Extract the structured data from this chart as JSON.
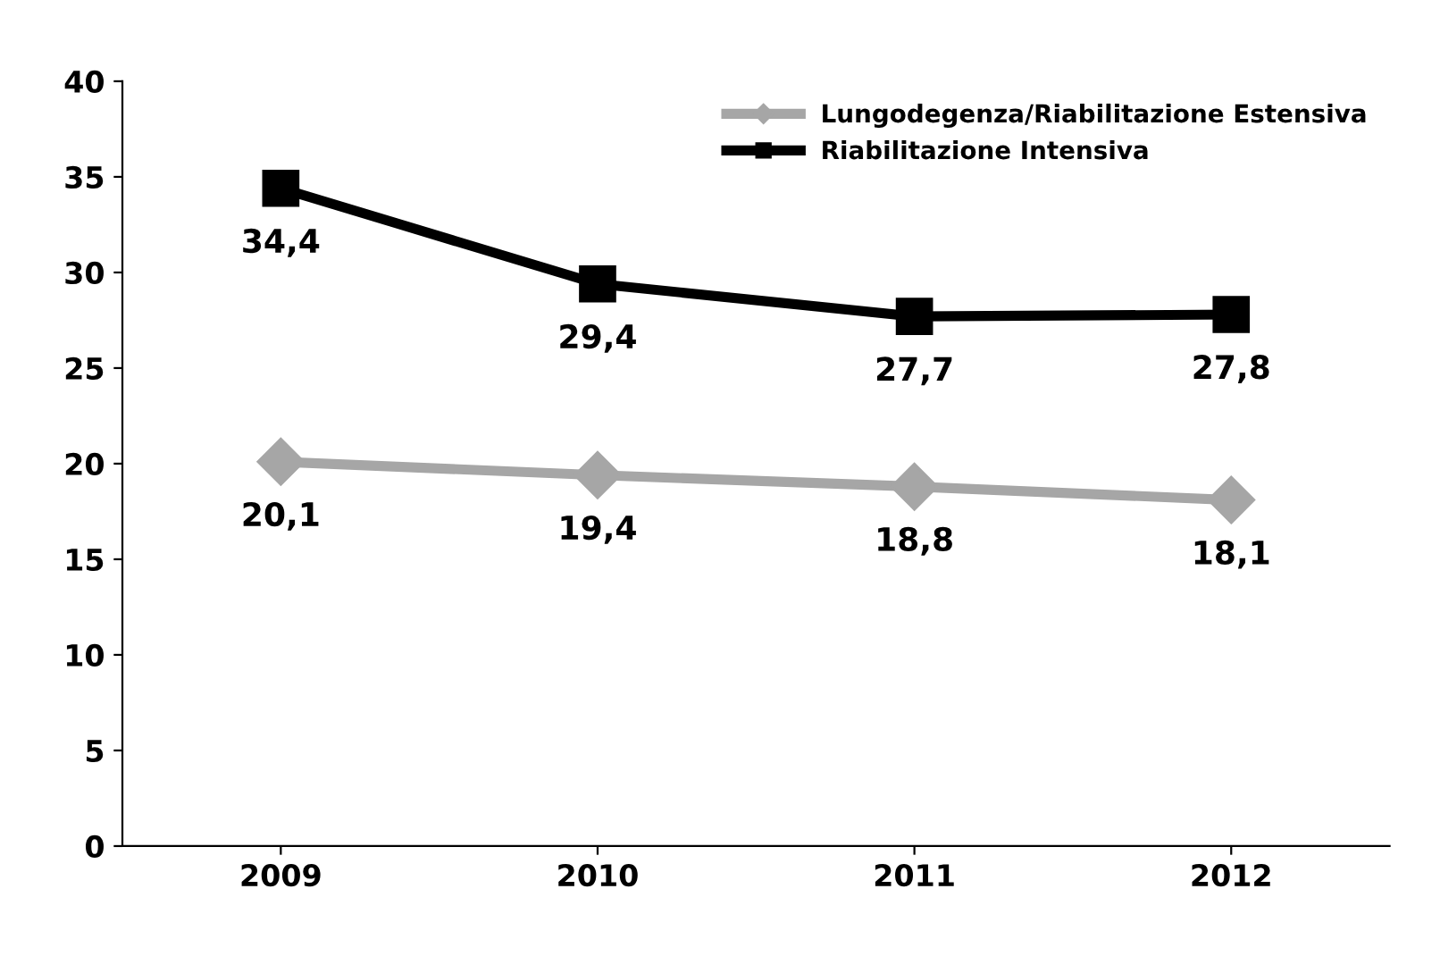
{
  "chart_data": {
    "type": "line",
    "categories": [
      "2009",
      "2010",
      "2011",
      "2012"
    ],
    "series": [
      {
        "name": "Lungodegenza/Riabilitazione Estensiva",
        "color": "#a6a6a6",
        "marker": "diamond",
        "values": [
          20.1,
          19.4,
          18.8,
          18.1
        ],
        "value_labels": [
          "20,1",
          "19,4",
          "18,8",
          "18,1"
        ]
      },
      {
        "name": "Riabilitazione Intensiva",
        "color": "#000000",
        "marker": "square",
        "values": [
          34.4,
          29.4,
          27.7,
          27.8
        ],
        "value_labels": [
          "34,4",
          "29,4",
          "27,7",
          "27,8"
        ]
      }
    ],
    "ylim": [
      0,
      40
    ],
    "yticks": [
      0,
      5,
      10,
      15,
      20,
      25,
      30,
      35,
      40
    ],
    "grid": false,
    "legend": "top right",
    "line_style": "solid"
  }
}
